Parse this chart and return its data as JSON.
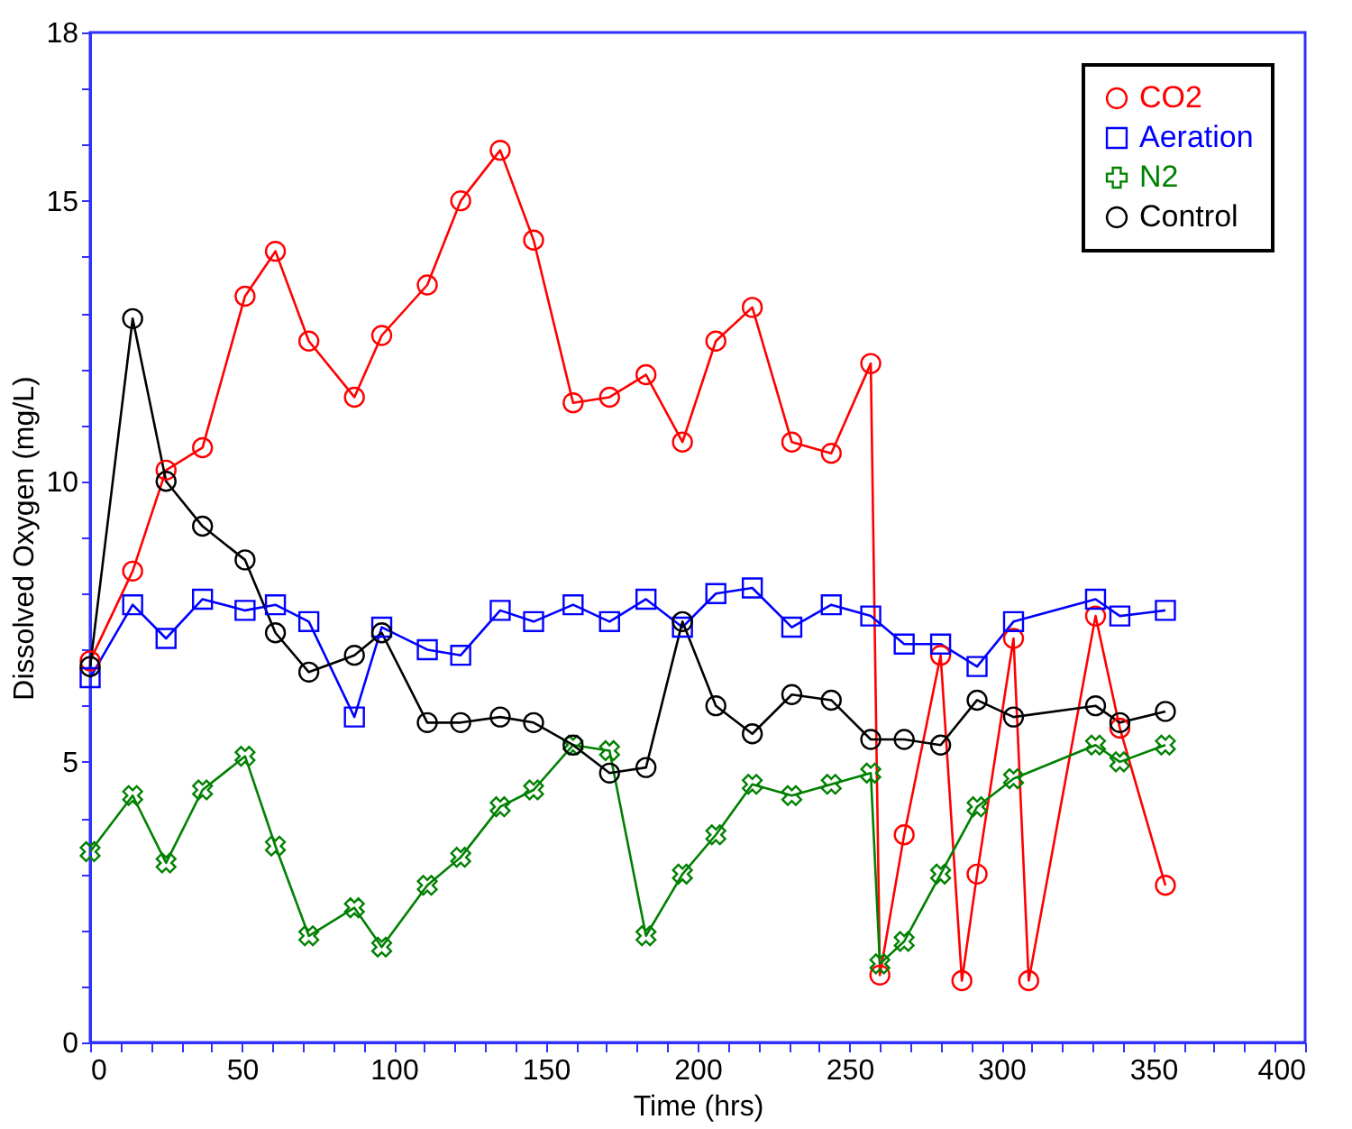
{
  "chart_data": {
    "type": "line",
    "xlabel": "Time (hrs)",
    "ylabel": "Dissolved Oxygen (mg/L)",
    "xlim": [
      0,
      400
    ],
    "ylim": [
      0,
      18
    ],
    "xticks": [
      0,
      {
        "value": 10,
        "label": null
      },
      {
        "value": 20,
        "label": null
      },
      {
        "value": 30,
        "label": null
      },
      {
        "value": 40,
        "label": null
      },
      50,
      {
        "value": 60,
        "label": null
      },
      {
        "value": 70,
        "label": null
      },
      {
        "value": 80,
        "label": null
      },
      {
        "value": 90,
        "label": null
      },
      100,
      {
        "value": 110,
        "label": null
      },
      {
        "value": 120,
        "label": null
      },
      {
        "value": 130,
        "label": null
      },
      {
        "value": 140,
        "label": null
      },
      150,
      {
        "value": 160,
        "label": null
      },
      {
        "value": 170,
        "label": null
      },
      {
        "value": 180,
        "label": null
      },
      {
        "value": 190,
        "label": null
      },
      200,
      {
        "value": 210,
        "label": null
      },
      {
        "value": 220,
        "label": null
      },
      {
        "value": 230,
        "label": null
      },
      {
        "value": 240,
        "label": null
      },
      250,
      {
        "value": 260,
        "label": null
      },
      {
        "value": 270,
        "label": null
      },
      {
        "value": 280,
        "label": null
      },
      {
        "value": 290,
        "label": null
      },
      300,
      {
        "value": 310,
        "label": null
      },
      {
        "value": 320,
        "label": null
      },
      {
        "value": 330,
        "label": null
      },
      {
        "value": 340,
        "label": null
      },
      350,
      {
        "value": 360,
        "label": null
      },
      {
        "value": 370,
        "label": null
      },
      {
        "value": 380,
        "label": null
      },
      {
        "value": 390,
        "label": null
      },
      400
    ],
    "yticks": [
      0,
      {
        "value": 1,
        "label": null
      },
      {
        "value": 2,
        "label": null
      },
      {
        "value": 3,
        "label": null
      },
      {
        "value": 4,
        "label": null
      },
      5,
      {
        "value": 6,
        "label": null
      },
      {
        "value": 7,
        "label": null
      },
      {
        "value": 8,
        "label": null
      },
      {
        "value": 9,
        "label": null
      },
      10,
      {
        "value": 11,
        "label": null
      },
      {
        "value": 12,
        "label": null
      },
      {
        "value": 13,
        "label": null
      },
      {
        "value": 14,
        "label": null
      },
      15,
      {
        "value": 16,
        "label": null
      },
      {
        "value": 17,
        "label": null
      },
      18
    ],
    "grid": false,
    "legend": "top right",
    "series": [
      {
        "name": "CO2",
        "color": "#ff0000",
        "marker": "circle",
        "x": [
          0,
          14,
          25,
          37,
          51,
          61,
          72,
          87,
          96,
          111,
          122,
          135,
          146,
          159,
          171,
          183,
          195,
          206,
          218,
          231,
          244,
          257,
          260,
          268,
          280,
          287,
          292,
          304,
          309,
          331,
          339,
          354
        ],
        "values": [
          6.8,
          8.4,
          10.2,
          10.6,
          13.3,
          14.1,
          12.5,
          11.5,
          12.6,
          13.5,
          15.0,
          15.9,
          14.3,
          11.4,
          11.5,
          11.9,
          10.7,
          12.5,
          13.1,
          10.7,
          10.5,
          12.1,
          1.2,
          3.7,
          6.9,
          1.1,
          3.0,
          7.2,
          1.1,
          7.6,
          5.6,
          2.8
        ]
      },
      {
        "name": "Aeration",
        "color": "#0000ff",
        "marker": "square",
        "x": [
          0,
          14,
          25,
          37,
          51,
          61,
          72,
          87,
          96,
          111,
          122,
          135,
          146,
          159,
          171,
          183,
          195,
          206,
          218,
          231,
          244,
          257,
          268,
          280,
          292,
          304,
          331,
          339,
          354
        ],
        "values": [
          6.5,
          7.8,
          7.2,
          7.9,
          7.7,
          7.8,
          7.5,
          5.8,
          7.4,
          7.0,
          6.9,
          7.7,
          7.5,
          7.8,
          7.5,
          7.9,
          7.4,
          8.0,
          8.1,
          7.4,
          7.8,
          7.6,
          7.1,
          7.1,
          6.7,
          7.5,
          7.9,
          7.6,
          7.7
        ]
      },
      {
        "name": "N2",
        "color": "#008000",
        "marker": "cross",
        "x": [
          0,
          14,
          25,
          37,
          51,
          61,
          72,
          87,
          96,
          111,
          122,
          135,
          146,
          159,
          171,
          183,
          195,
          206,
          218,
          231,
          244,
          257,
          260,
          268,
          280,
          292,
          304,
          331,
          339,
          354
        ],
        "values": [
          3.4,
          4.4,
          3.2,
          4.5,
          5.1,
          3.5,
          1.9,
          2.4,
          1.7,
          2.8,
          3.3,
          4.2,
          4.5,
          5.3,
          5.2,
          1.9,
          3.0,
          3.7,
          4.6,
          4.4,
          4.6,
          4.8,
          1.4,
          1.8,
          3.0,
          4.2,
          4.7,
          5.3,
          5.0,
          5.3
        ]
      },
      {
        "name": "Control",
        "color": "#000000",
        "marker": "circle",
        "x": [
          0,
          14,
          25,
          37,
          51,
          61,
          72,
          87,
          96,
          111,
          122,
          135,
          146,
          159,
          171,
          183,
          195,
          206,
          218,
          231,
          244,
          257,
          268,
          280,
          292,
          304,
          331,
          339,
          354
        ],
        "values": [
          6.7,
          12.9,
          10.0,
          9.2,
          8.6,
          7.3,
          6.6,
          6.9,
          7.3,
          5.7,
          5.7,
          5.8,
          5.7,
          5.3,
          4.8,
          4.9,
          7.5,
          6.0,
          5.5,
          6.2,
          6.1,
          5.4,
          5.4,
          5.3,
          6.1,
          5.8,
          6.0,
          5.7,
          5.9
        ]
      }
    ]
  }
}
